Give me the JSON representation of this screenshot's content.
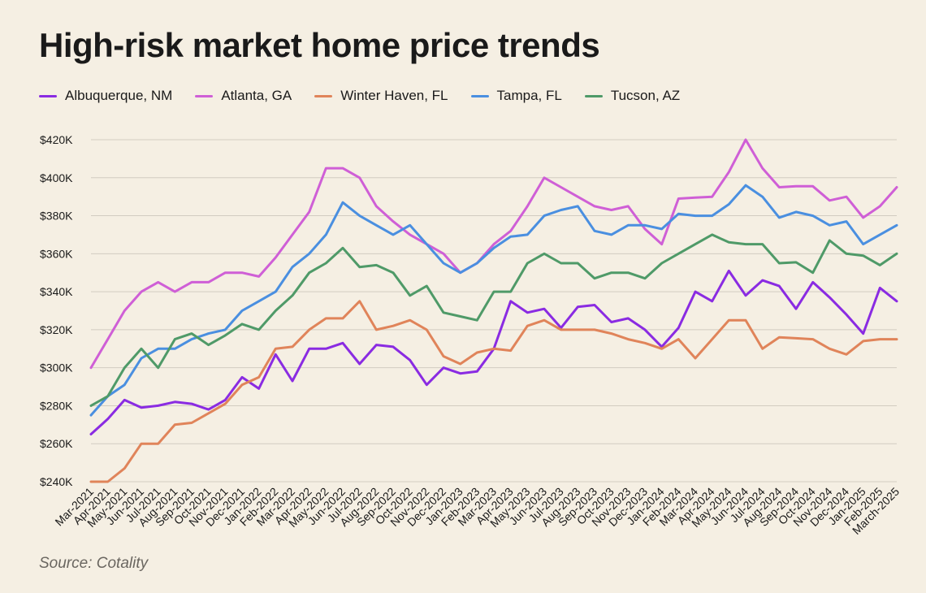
{
  "title": "High-risk market home price trends",
  "source": "Source: Cotality",
  "legend": [
    {
      "label": "Albuquerque, NM",
      "color": "#8a2be2"
    },
    {
      "label": "Atlanta, GA",
      "color": "#cf5fd6"
    },
    {
      "label": "Winter Haven, FL",
      "color": "#e0845a"
    },
    {
      "label": "Tampa, FL",
      "color": "#4a8fe0"
    },
    {
      "label": "Tucson, AZ",
      "color": "#4f9a68"
    }
  ],
  "chart_data": {
    "type": "line",
    "title": "High-risk market home price trends",
    "xlabel": "",
    "ylabel": "",
    "ylim": [
      240000,
      420000
    ],
    "grid": true,
    "legend_position": "top-left",
    "y_tick_values": [
      240000,
      260000,
      280000,
      300000,
      320000,
      340000,
      360000,
      380000,
      400000,
      420000
    ],
    "y_tick_labels": [
      "$240K",
      "$260K",
      "$280K",
      "$300K",
      "$320K",
      "$340K",
      "$360K",
      "$380K",
      "$400K",
      "$420K"
    ],
    "x": [
      "Mar-2021",
      "Apr-2021",
      "May-2021",
      "Jun-2021",
      "Jul-2021",
      "Aug-2021",
      "Sep-2021",
      "Oct-2021",
      "Nov-2021",
      "Dec-2021",
      "Jan-2022",
      "Feb-2022",
      "Mar-2022",
      "Apr-2022",
      "May-2022",
      "Jun-2022",
      "Jul-2022",
      "Aug-2022",
      "Sep-2022",
      "Oct-2022",
      "Nov-2022",
      "Dec-2022",
      "Jan-2023",
      "Feb-2023",
      "Mar-2023",
      "Apr-2023",
      "May-2023",
      "Jun-2023",
      "Jul-2023",
      "Aug-2023",
      "Sep-2023",
      "Oct-2023",
      "Nov-2023",
      "Dec-2023",
      "Jan-2024",
      "Feb-2024",
      "Mar-2024",
      "Apr-2024",
      "May-2024",
      "Jun-2024",
      "Jul-2024",
      "Aug-2024",
      "Sep-2024",
      "Oct-2024",
      "Nov-2024",
      "Dec-2024",
      "Jan-2025",
      "Feb-2025",
      "March-2025"
    ],
    "series": [
      {
        "name": "Albuquerque, NM",
        "color": "#8a2be2",
        "values": [
          265000,
          273000,
          283000,
          279000,
          280000,
          282000,
          281000,
          278000,
          283000,
          295000,
          289000,
          307000,
          293000,
          310000,
          310000,
          313000,
          302000,
          312000,
          311000,
          304000,
          291000,
          300000,
          297000,
          298000,
          310000,
          335000,
          329000,
          331000,
          321000,
          332000,
          333000,
          324000,
          326000,
          320000,
          311000,
          321000,
          340000,
          335000,
          351000,
          338000,
          346000,
          343000,
          331000,
          345000,
          337000,
          328000,
          318000,
          342000,
          335000
        ]
      },
      {
        "name": "Atlanta, GA",
        "color": "#cf5fd6",
        "values": [
          300000,
          315000,
          330000,
          340000,
          345000,
          340000,
          345000,
          345000,
          350000,
          350000,
          348000,
          358000,
          370000,
          382000,
          405000,
          405000,
          400000,
          385000,
          377000,
          370000,
          365000,
          360000,
          350000,
          355000,
          365000,
          372000,
          385000,
          400000,
          395000,
          390000,
          385000,
          383000,
          385000,
          373000,
          365000,
          389000,
          389500,
          390000,
          403000,
          420000,
          405000,
          395000,
          395500,
          395500,
          388000,
          390000,
          379000,
          385000,
          395000
        ]
      },
      {
        "name": "Winter Haven, FL",
        "color": "#e0845a",
        "values": [
          240000,
          240000,
          247000,
          260000,
          260000,
          270000,
          271000,
          276000,
          281000,
          291000,
          295000,
          310000,
          311000,
          320000,
          326000,
          326000,
          335000,
          320000,
          322000,
          325000,
          320000,
          306000,
          302000,
          308000,
          310000,
          309000,
          322000,
          325000,
          320000,
          320000,
          320000,
          318000,
          315000,
          313000,
          310000,
          315000,
          305000,
          315000,
          325000,
          325000,
          310000,
          316000,
          315500,
          315000,
          310000,
          307000,
          314000,
          315000,
          315000
        ]
      },
      {
        "name": "Tampa, FL",
        "color": "#4a8fe0",
        "values": [
          275000,
          285000,
          291000,
          305000,
          310000,
          310000,
          315000,
          318000,
          320000,
          330000,
          335000,
          340000,
          353000,
          360000,
          370000,
          387000,
          380000,
          375000,
          370000,
          375000,
          365000,
          355000,
          350000,
          355000,
          363000,
          369000,
          370000,
          380000,
          383000,
          385000,
          372000,
          370000,
          375000,
          375000,
          373000,
          381000,
          380000,
          380000,
          386000,
          396000,
          390000,
          379000,
          382000,
          380000,
          375000,
          377000,
          365000,
          370000,
          375000
        ]
      },
      {
        "name": "Tucson, AZ",
        "color": "#4f9a68",
        "values": [
          280000,
          285000,
          300000,
          310000,
          300000,
          315000,
          318000,
          312000,
          317000,
          323000,
          320000,
          330000,
          338000,
          350000,
          355000,
          363000,
          353000,
          354000,
          350000,
          338000,
          343000,
          329000,
          327000,
          325000,
          340000,
          340000,
          355000,
          360000,
          355000,
          355000,
          347000,
          350000,
          350000,
          347000,
          355000,
          360000,
          365000,
          370000,
          366000,
          365000,
          365000,
          355000,
          355500,
          350000,
          367000,
          360000,
          359000,
          354000,
          360000
        ]
      }
    ]
  }
}
